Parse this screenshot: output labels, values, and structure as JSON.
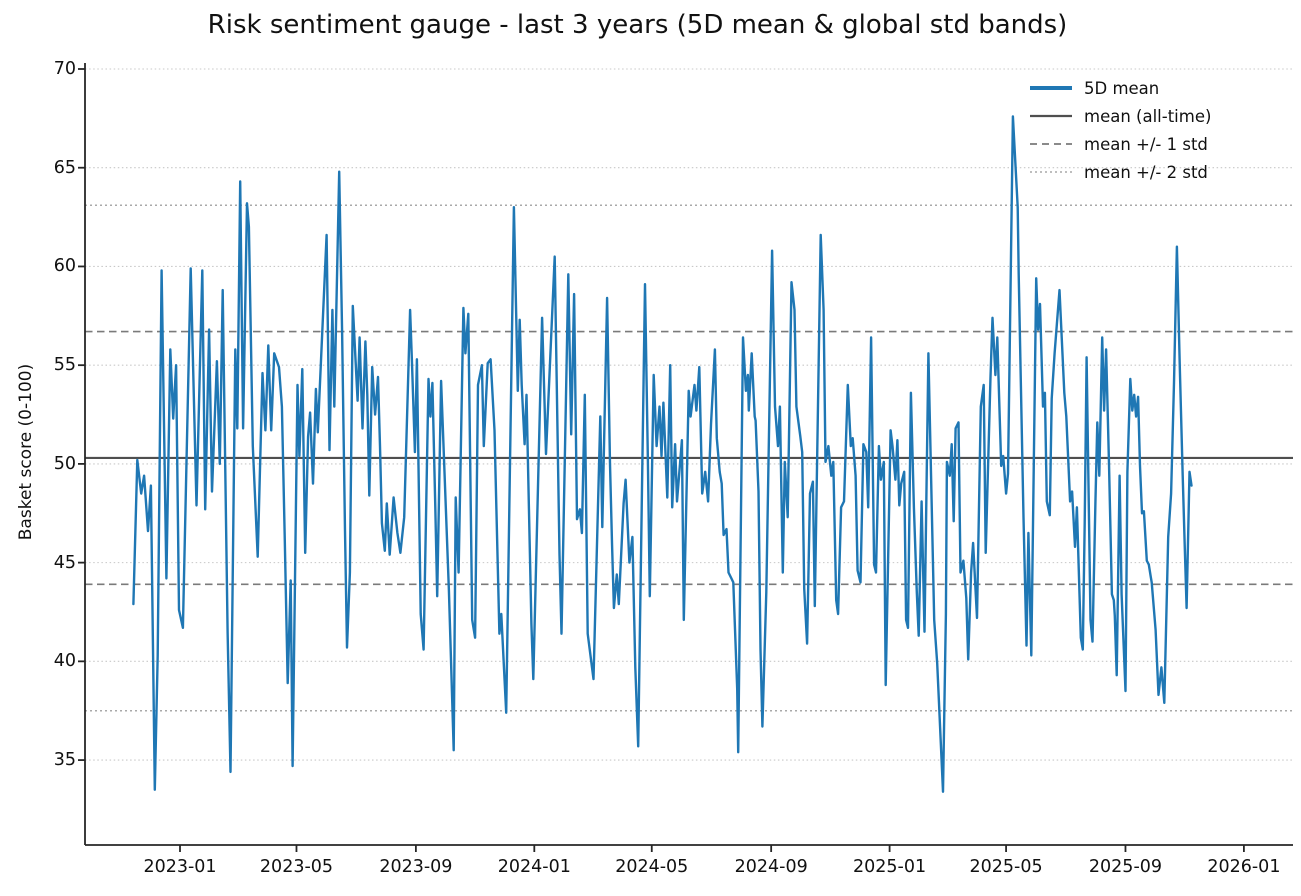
{
  "figure": {
    "title": "Risk sentiment gauge - last 3 years (5D mean & global std bands)",
    "background_color": "#ffffff"
  },
  "axes": {
    "ylabel": "Basket score (0-100)",
    "y_ticks": [
      35,
      40,
      45,
      50,
      55,
      60,
      65,
      70
    ],
    "x_ticks": [
      {
        "label": "2023-01",
        "date": "2023-01-01"
      },
      {
        "label": "2023-05",
        "date": "2023-05-01"
      },
      {
        "label": "2023-09",
        "date": "2023-09-01"
      },
      {
        "label": "2024-01",
        "date": "2024-01-01"
      },
      {
        "label": "2024-05",
        "date": "2024-05-01"
      },
      {
        "label": "2024-09",
        "date": "2024-09-01"
      },
      {
        "label": "2025-01",
        "date": "2025-01-01"
      },
      {
        "label": "2025-05",
        "date": "2025-05-01"
      },
      {
        "label": "2025-09",
        "date": "2025-09-01"
      },
      {
        "label": "2026-01",
        "date": "2026-01-01"
      }
    ]
  },
  "stats": {
    "mean_all_time": 50.3,
    "std": 6.4,
    "mean_plus_1std": 56.7,
    "mean_minus_1std": 43.9,
    "mean_plus_2std": 63.1,
    "mean_minus_2std": 37.5
  },
  "legend": {
    "items": [
      {
        "label": "5D mean",
        "style": "series"
      },
      {
        "label": "mean (all-time)",
        "style": "mean"
      },
      {
        "label": "mean +/- 1 std",
        "style": "std1"
      },
      {
        "label": "mean +/- 2 std",
        "style": "std2"
      }
    ]
  },
  "colors": {
    "series": "#1f77b4",
    "mean_line": "#4f4f4f",
    "std1_line": "#7a7a7a",
    "std2_line": "#a9a9a9",
    "gridline": "#c8c8c8",
    "spine": "#262626",
    "text": "#111111"
  },
  "chart_data": {
    "type": "line",
    "title": "Risk sentiment gauge - last 3 years (5D mean & global std bands)",
    "xlabel": "",
    "ylabel": "Basket score (0-100)",
    "ylim": [
      30.7,
      70.3
    ],
    "xlim": [
      "2022-09-24",
      "2026-02-18"
    ],
    "grid": "horizontal dotted at y ticks",
    "legend_position": "upper right, frameless",
    "reference_lines": [
      {
        "name": "mean (all-time)",
        "value": 50.3,
        "style": "solid"
      },
      {
        "name": "mean + 1 std",
        "value": 56.7,
        "style": "dashed"
      },
      {
        "name": "mean - 1 std",
        "value": 43.9,
        "style": "dashed"
      },
      {
        "name": "mean + 2 std",
        "value": 63.1,
        "style": "dotted"
      },
      {
        "name": "mean - 2 std",
        "value": 37.5,
        "style": "dotted"
      }
    ],
    "series": [
      {
        "name": "5D mean",
        "x": [
          "2022-11-14",
          "2022-11-18",
          "2022-11-22",
          "2022-11-25",
          "2022-11-29",
          "2022-12-02",
          "2022-12-06",
          "2022-12-09",
          "2022-12-13",
          "2022-12-18",
          "2022-12-22",
          "2022-12-25",
          "2022-12-28",
          "2022-12-31",
          "2023-01-04",
          "2023-01-12",
          "2023-01-18",
          "2023-01-24",
          "2023-01-27",
          "2023-01-31",
          "2023-02-03",
          "2023-02-08",
          "2023-02-11",
          "2023-02-14",
          "2023-02-19",
          "2023-02-22",
          "2023-02-27",
          "2023-03-01",
          "2023-03-04",
          "2023-03-07",
          "2023-03-11",
          "2023-03-13",
          "2023-03-17",
          "2023-03-22",
          "2023-03-27",
          "2023-03-30",
          "2023-04-02",
          "2023-04-05",
          "2023-04-08",
          "2023-04-13",
          "2023-04-16",
          "2023-04-19",
          "2023-04-22",
          "2023-04-25",
          "2023-04-27",
          "2023-05-02",
          "2023-05-04",
          "2023-05-07",
          "2023-05-10",
          "2023-05-13",
          "2023-05-15",
          "2023-05-18",
          "2023-05-21",
          "2023-05-23",
          "2023-06-01",
          "2023-06-04",
          "2023-06-07",
          "2023-06-09",
          "2023-06-14",
          "2023-06-17",
          "2023-06-20",
          "2023-06-22",
          "2023-06-25",
          "2023-06-28",
          "2023-07-01",
          "2023-07-03",
          "2023-07-05",
          "2023-07-08",
          "2023-07-11",
          "2023-07-13",
          "2023-07-15",
          "2023-07-18",
          "2023-07-21",
          "2023-07-24",
          "2023-07-26",
          "2023-07-28",
          "2023-07-31",
          "2023-08-02",
          "2023-08-05",
          "2023-08-09",
          "2023-08-13",
          "2023-08-16",
          "2023-08-20",
          "2023-08-26",
          "2023-08-28",
          "2023-08-31",
          "2023-09-02",
          "2023-09-06",
          "2023-09-09",
          "2023-09-14",
          "2023-09-16",
          "2023-09-18",
          "2023-09-21",
          "2023-09-23",
          "2023-09-27",
          "2023-10-05",
          "2023-10-10",
          "2023-10-12",
          "2023-10-15",
          "2023-10-20",
          "2023-10-22",
          "2023-10-25",
          "2023-10-29",
          "2023-11-01",
          "2023-11-04",
          "2023-11-08",
          "2023-11-10",
          "2023-11-14",
          "2023-11-17",
          "2023-11-21",
          "2023-11-26",
          "2023-11-28",
          "2023-12-03",
          "2023-12-11",
          "2023-12-15",
          "2023-12-17",
          "2023-12-19",
          "2023-12-22",
          "2023-12-24",
          "2023-12-29",
          "2023-12-31",
          "2024-01-09",
          "2024-01-13",
          "2024-01-22",
          "2024-01-27",
          "2024-01-29",
          "2024-02-05",
          "2024-02-08",
          "2024-02-11",
          "2024-02-14",
          "2024-02-17",
          "2024-02-19",
          "2024-02-22",
          "2024-02-25",
          "2024-03-02",
          "2024-03-09",
          "2024-03-11",
          "2024-03-16",
          "2024-03-19",
          "2024-03-21",
          "2024-03-23",
          "2024-03-26",
          "2024-03-28",
          "2024-04-02",
          "2024-04-04",
          "2024-04-08",
          "2024-04-11",
          "2024-04-14",
          "2024-04-17",
          "2024-04-24",
          "2024-04-27",
          "2024-04-29",
          "2024-05-03",
          "2024-05-06",
          "2024-05-09",
          "2024-05-11",
          "2024-05-13",
          "2024-05-17",
          "2024-05-20",
          "2024-05-22",
          "2024-05-25",
          "2024-05-27",
          "2024-06-01",
          "2024-06-03",
          "2024-06-08",
          "2024-06-10",
          "2024-06-14",
          "2024-06-16",
          "2024-06-19",
          "2024-06-22",
          "2024-06-25",
          "2024-06-28",
          "2024-07-01",
          "2024-07-05",
          "2024-07-07",
          "2024-07-10",
          "2024-07-12",
          "2024-07-14",
          "2024-07-17",
          "2024-07-19",
          "2024-07-22",
          "2024-07-24",
          "2024-07-28",
          "2024-07-29",
          "2024-08-03",
          "2024-08-06",
          "2024-08-08",
          "2024-08-09",
          "2024-08-12",
          "2024-08-15",
          "2024-08-16",
          "2024-08-19",
          "2024-08-21",
          "2024-08-23",
          "2024-08-27",
          "2024-09-02",
          "2024-09-05",
          "2024-09-08",
          "2024-09-10",
          "2024-09-13",
          "2024-09-15",
          "2024-09-18",
          "2024-09-22",
          "2024-09-25",
          "2024-09-27",
          "2024-10-01",
          "2024-10-03",
          "2024-10-05",
          "2024-10-08",
          "2024-10-11",
          "2024-10-14",
          "2024-10-16",
          "2024-10-22",
          "2024-10-25",
          "2024-10-27",
          "2024-10-30",
          "2024-11-02",
          "2024-11-04",
          "2024-11-07",
          "2024-11-09",
          "2024-11-12",
          "2024-11-15",
          "2024-11-19",
          "2024-11-22",
          "2024-11-24",
          "2024-11-27",
          "2024-11-29",
          "2024-12-02",
          "2024-12-05",
          "2024-12-08",
          "2024-12-10",
          "2024-12-13",
          "2024-12-16",
          "2024-12-18",
          "2024-12-21",
          "2024-12-23",
          "2024-12-26",
          "2024-12-28",
          "2025-01-02",
          "2025-01-04",
          "2025-01-07",
          "2025-01-09",
          "2025-01-11",
          "2025-01-13",
          "2025-01-16",
          "2025-01-18",
          "2025-01-20",
          "2025-01-23",
          "2025-01-26",
          "2025-01-29",
          "2025-01-31",
          "2025-02-03",
          "2025-02-06",
          "2025-02-10",
          "2025-02-16",
          "2025-02-19",
          "2025-02-25",
          "2025-02-28",
          "2025-03-01",
          "2025-03-04",
          "2025-03-06",
          "2025-03-08",
          "2025-03-10",
          "2025-03-13",
          "2025-03-15",
          "2025-03-18",
          "2025-03-21",
          "2025-03-23",
          "2025-03-26",
          "2025-03-28",
          "2025-04-01",
          "2025-04-05",
          "2025-04-08",
          "2025-04-10",
          "2025-04-15",
          "2025-04-17",
          "2025-04-20",
          "2025-04-22",
          "2025-04-26",
          "2025-04-28",
          "2025-05-01",
          "2025-05-03",
          "2025-05-08",
          "2025-05-13",
          "2025-05-14",
          "2025-05-19",
          "2025-05-22",
          "2025-05-24",
          "2025-05-27",
          "2025-06-01",
          "2025-06-03",
          "2025-06-05",
          "2025-06-08",
          "2025-06-10",
          "2025-06-12",
          "2025-06-15",
          "2025-06-17",
          "2025-06-20",
          "2025-06-25",
          "2025-06-30",
          "2025-07-02",
          "2025-07-06",
          "2025-07-08",
          "2025-07-11",
          "2025-07-13",
          "2025-07-17",
          "2025-07-19",
          "2025-07-21",
          "2025-07-23",
          "2025-07-27",
          "2025-07-29",
          "2025-08-01",
          "2025-08-03",
          "2025-08-05",
          "2025-08-08",
          "2025-08-10",
          "2025-08-12",
          "2025-08-15",
          "2025-08-18",
          "2025-08-20",
          "2025-08-21",
          "2025-08-23",
          "2025-08-26",
          "2025-08-28",
          "2025-09-01",
          "2025-09-03",
          "2025-09-06",
          "2025-09-08",
          "2025-09-10",
          "2025-09-12",
          "2025-09-14",
          "2025-09-16",
          "2025-09-18",
          "2025-09-20",
          "2025-09-23",
          "2025-09-25",
          "2025-09-27",
          "2025-09-28",
          "2025-10-02",
          "2025-10-05",
          "2025-10-08",
          "2025-10-11",
          "2025-10-15",
          "2025-10-18",
          "2025-10-21",
          "2025-10-24",
          "2025-10-27",
          "2025-10-30",
          "2025-11-01",
          "2025-11-03",
          "2025-11-06",
          "2025-11-08"
        ],
        "values": [
          42.9,
          50.2,
          48.5,
          49.4,
          46.6,
          48.9,
          33.5,
          40.3,
          59.8,
          44.2,
          55.8,
          52.3,
          55.0,
          42.6,
          41.7,
          59.9,
          47.9,
          59.8,
          47.7,
          56.8,
          48.6,
          55.2,
          50.0,
          58.8,
          41.5,
          34.4,
          55.8,
          51.8,
          64.3,
          51.8,
          63.2,
          62.0,
          50.9,
          45.3,
          54.6,
          51.7,
          56.0,
          51.7,
          55.6,
          54.9,
          52.9,
          46.1,
          38.9,
          44.1,
          34.7,
          54.0,
          50.4,
          54.8,
          45.5,
          51.4,
          52.6,
          49.0,
          53.8,
          51.6,
          61.6,
          50.7,
          57.8,
          52.9,
          64.8,
          56.7,
          46.6,
          40.7,
          44.5,
          58.0,
          55.1,
          53.2,
          56.4,
          51.8,
          56.2,
          53.5,
          48.4,
          54.9,
          52.5,
          54.4,
          50.9,
          47.0,
          45.6,
          48.0,
          45.4,
          48.3,
          46.5,
          45.5,
          47.3,
          57.8,
          55.1,
          50.6,
          55.3,
          42.4,
          40.6,
          54.3,
          52.4,
          54.1,
          47.8,
          43.3,
          54.2,
          43.6,
          35.5,
          48.3,
          44.5,
          57.9,
          55.6,
          57.6,
          42.1,
          41.2,
          54.0,
          55.0,
          50.9,
          55.1,
          55.3,
          51.7,
          41.4,
          42.4,
          37.4,
          63.0,
          53.7,
          57.3,
          54.0,
          51.0,
          53.5,
          41.9,
          39.1,
          57.4,
          50.5,
          60.5,
          45.4,
          41.4,
          59.6,
          51.5,
          58.6,
          47.2,
          47.7,
          46.5,
          53.5,
          41.4,
          39.1,
          52.4,
          46.8,
          58.4,
          50.0,
          46.0,
          42.7,
          44.4,
          42.9,
          48.0,
          49.2,
          45.0,
          46.3,
          39.7,
          35.7,
          59.1,
          50.1,
          43.3,
          54.5,
          50.9,
          52.9,
          50.4,
          53.1,
          48.3,
          55.0,
          47.8,
          51.0,
          48.1,
          51.2,
          42.1,
          53.7,
          52.4,
          54.0,
          52.7,
          54.9,
          48.5,
          49.6,
          48.1,
          52.0,
          55.8,
          51.3,
          49.6,
          49.0,
          46.4,
          46.7,
          44.5,
          44.2,
          44.0,
          38.6,
          35.4,
          56.4,
          53.7,
          54.5,
          52.7,
          55.6,
          52.4,
          52.2,
          48.6,
          40.6,
          36.7,
          43.5,
          60.8,
          52.9,
          50.9,
          52.9,
          44.5,
          50.1,
          47.3,
          59.2,
          57.8,
          52.9,
          51.4,
          50.6,
          43.7,
          40.9,
          48.5,
          49.1,
          42.8,
          61.6,
          57.8,
          50.1,
          50.9,
          49.4,
          50.1,
          43.1,
          42.4,
          47.8,
          48.1,
          54.0,
          50.9,
          51.3,
          49.4,
          44.6,
          44.0,
          51.0,
          50.6,
          47.8,
          56.4,
          44.9,
          44.5,
          50.9,
          49.2,
          50.1,
          38.8,
          51.7,
          50.9,
          49.2,
          51.2,
          47.9,
          49.0,
          49.6,
          42.1,
          41.7,
          53.6,
          47.8,
          43.5,
          41.3,
          48.1,
          41.5,
          55.6,
          42.1,
          39.9,
          33.4,
          42.4,
          50.1,
          49.4,
          51.0,
          47.1,
          51.8,
          52.1,
          44.5,
          45.1,
          43.2,
          40.1,
          44.5,
          46.0,
          42.2,
          52.9,
          54.0,
          45.5,
          54.4,
          57.4,
          54.5,
          56.4,
          49.9,
          50.4,
          48.5,
          49.5,
          67.6,
          63.0,
          59.6,
          47.3,
          40.8,
          46.5,
          40.3,
          59.4,
          56.8,
          58.1,
          52.9,
          53.6,
          48.1,
          47.4,
          53.3,
          55.6,
          58.8,
          53.6,
          52.4,
          48.1,
          48.6,
          45.8,
          47.8,
          41.2,
          40.6,
          47.0,
          55.4,
          42.1,
          41.0,
          48.0,
          52.1,
          49.4,
          56.4,
          52.7,
          55.8,
          50.0,
          43.4,
          43.1,
          42.3,
          39.3,
          49.4,
          43.4,
          38.5,
          49.6,
          54.3,
          52.7,
          53.5,
          52.4,
          53.4,
          49.9,
          47.5,
          47.6,
          45.1,
          44.9,
          44.3,
          44.0,
          41.6,
          38.3,
          39.7,
          37.9,
          46.3,
          48.5,
          54.1,
          61.0,
          54.9,
          49.4,
          45.9,
          42.7,
          49.6,
          48.9
        ]
      }
    ]
  }
}
